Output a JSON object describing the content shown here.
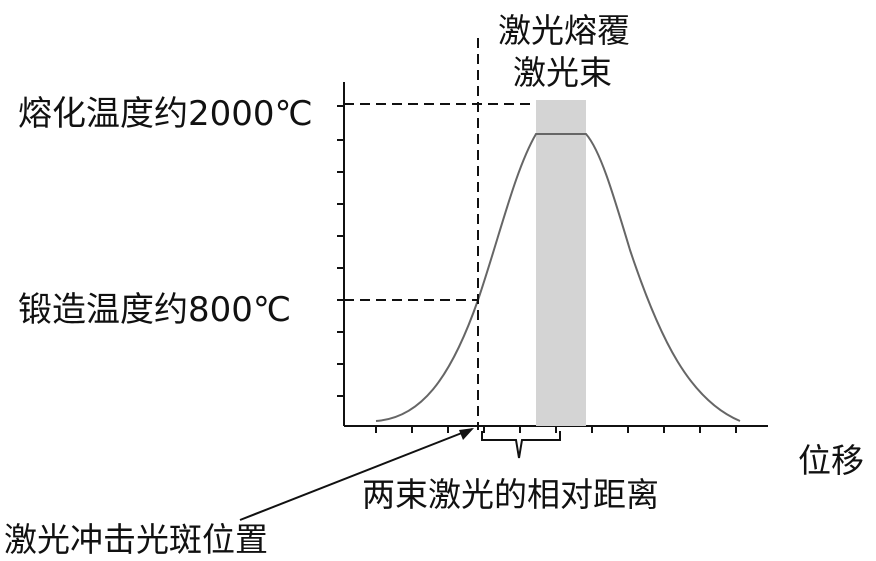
{
  "labels": {
    "melt_temp": "熔化温度约2000℃",
    "forge_temp": "锻造温度约800℃",
    "cladding_beam_line1": "激光熔覆",
    "cladding_beam_line2": "激光束",
    "x_axis": "位移",
    "beam_distance": "两束激光的相对距离",
    "shock_spot": "激光冲击光斑位置"
  },
  "colors": {
    "curve": "#666666",
    "beam_band": "#d4d4d4",
    "lines": "#111111"
  }
}
